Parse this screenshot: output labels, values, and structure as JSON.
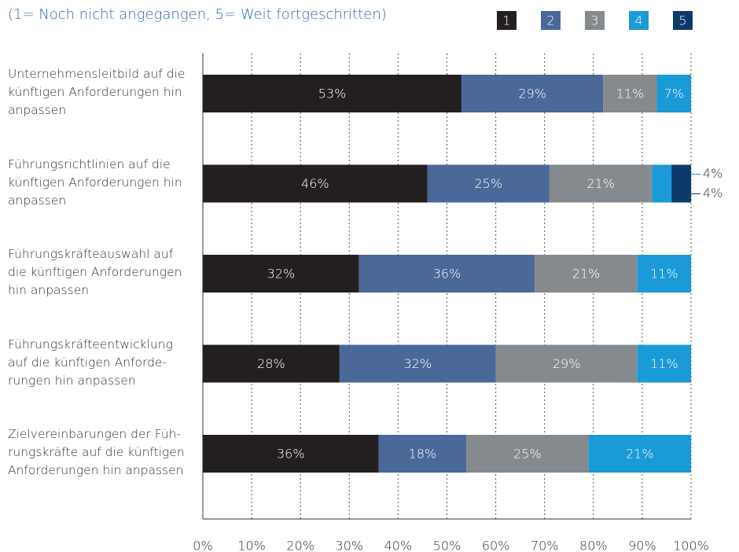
{
  "chart_data": {
    "type": "stacked_barh",
    "subtitle": "(1= Noch nicht angegangen, 5= Weit fortgeschritten)",
    "categories": [
      "Unternehmensleitbild auf die\nkünftigen Anforderungen hin\nanpassen",
      "Führungsrichtlinien auf die\nkünftigen Anforderungen hin\nanpassen",
      "Führungskräfteauswahl auf\ndie künftigen Anforderungen\nhin anpassen",
      "Führungskräfteentwicklung\nauf die künftigen Anforde-\nrungen hin anpassen",
      "Zielvereinbarungen der Füh-\nrungskräfte auf die künftigen\nAnforderungen hin anpassen"
    ],
    "series": [
      {
        "name": "1",
        "color": "#231f20",
        "values": [
          53,
          46,
          32,
          28,
          36
        ],
        "value_labels": [
          "53%",
          "46%",
          "32%",
          "28%",
          "36%"
        ]
      },
      {
        "name": "2",
        "color": "#4a6898",
        "values": [
          29,
          25,
          36,
          32,
          18
        ],
        "value_labels": [
          "29%",
          "25%",
          "36%",
          "32%",
          "18%"
        ]
      },
      {
        "name": "3",
        "color": "#858a8e",
        "values": [
          11,
          21,
          21,
          29,
          25
        ],
        "value_labels": [
          "11%",
          "21%",
          "21%",
          "29%",
          "25%"
        ]
      },
      {
        "name": "4",
        "color": "#1a9ad6",
        "values": [
          7,
          4,
          11,
          11,
          21
        ],
        "value_labels": [
          "7%",
          "4%",
          "11%",
          "11%",
          "21%"
        ]
      },
      {
        "name": "5",
        "color": "#0c3a6b",
        "values": [
          null,
          4,
          null,
          null,
          null
        ],
        "value_labels": [
          null,
          "4%",
          null,
          null,
          null
        ]
      }
    ],
    "xlim": [
      0,
      100
    ],
    "xticks": [
      {
        "value": 0,
        "label": "0%"
      },
      {
        "value": 10,
        "label": "10%"
      },
      {
        "value": 20,
        "label": "20%"
      },
      {
        "value": 30,
        "label": "30%"
      },
      {
        "value": 40,
        "label": "40%"
      },
      {
        "value": 50,
        "label": "50%"
      },
      {
        "value": 60,
        "label": "60%"
      },
      {
        "value": 70,
        "label": "70%"
      },
      {
        "value": 80,
        "label": "80%"
      },
      {
        "value": 90,
        "label": "90%"
      },
      {
        "value": 100,
        "label": "100%"
      }
    ],
    "grid": true,
    "legend": "top-right"
  }
}
